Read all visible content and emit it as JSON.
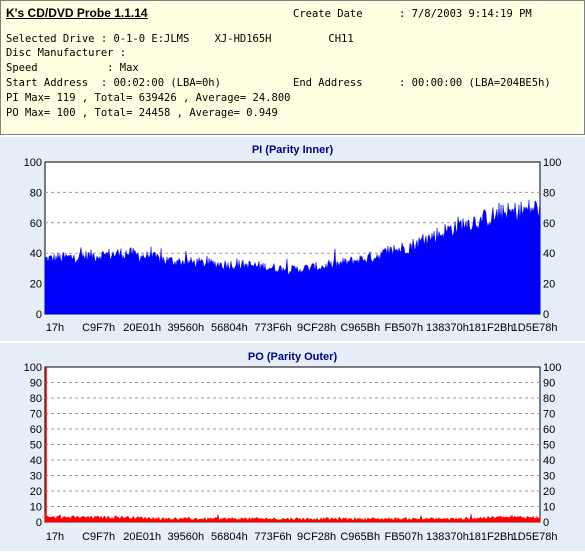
{
  "header": {
    "app_title": "K's CD/DVD Probe 1.1.14",
    "create_date_label": "Create Date",
    "create_date_value": ": 7/8/2003 9:14:19 PM",
    "line1": "Selected Drive : 0-1-0 E:JLMS    XJ-HD165H         CH11",
    "line2": "Disc Manufacturer :",
    "line3": "Speed           : Max",
    "start_address": "Start Address  : 00:02:00 (LBA=0h)",
    "end_address_label": "End Address",
    "end_address_value": ": 00:00:00 (LBA=204BE5h)",
    "pi_stats": "PI Max= 119 , Total= 639426 , Average= 24.800",
    "po_stats": "PO Max= 100 , Total= 24458 , Average= 0.949"
  },
  "x_tick_labels": [
    "17h",
    "C9F7h",
    "20E01h",
    "39560h",
    "56804h",
    "773F6h",
    "9CF28h",
    "C965Bh",
    "FB507h",
    "138370h",
    "181F2Bh",
    "1D5E78h"
  ],
  "chart_data": [
    {
      "type": "area",
      "title": "PI (Parity Inner)",
      "x": [
        "17h",
        "C9F7h",
        "20E01h",
        "39560h",
        "56804h",
        "773F6h",
        "9CF28h",
        "C965Bh",
        "FB507h",
        "138370h",
        "181F2Bh",
        "1D5E78h",
        "204BE5h"
      ],
      "values": [
        36,
        38,
        40,
        35,
        33,
        32,
        29,
        32,
        38,
        46,
        58,
        65,
        70
      ],
      "ylim": [
        0,
        100
      ],
      "yticks": [
        0,
        20,
        40,
        60,
        80,
        100
      ],
      "ytick_labels": [
        "0",
        "20",
        "40",
        "60",
        "80",
        "100"
      ],
      "grid": true,
      "color": "#0000ff"
    },
    {
      "type": "area",
      "title": "PO (Parity Outer)",
      "x": [
        "17h",
        "C9F7h",
        "20E01h",
        "39560h",
        "56804h",
        "773F6h",
        "9CF28h",
        "C965Bh",
        "FB507h",
        "138370h",
        "181F2Bh",
        "1D5E78h",
        "204BE5h"
      ],
      "values": [
        3,
        3,
        3,
        2,
        2,
        2,
        2,
        2,
        2,
        2,
        2,
        3,
        3
      ],
      "spike": {
        "x": "17h",
        "value": 100
      },
      "ylim": [
        0,
        100
      ],
      "yticks": [
        0,
        10,
        20,
        30,
        40,
        50,
        60,
        70,
        80,
        90,
        100
      ],
      "ytick_labels": [
        "0",
        "10",
        "20",
        "30",
        "40",
        "50",
        "60",
        "70",
        "80",
        "90",
        "100"
      ],
      "grid": true,
      "color": "#ff0000"
    }
  ],
  "colors": {
    "info_bg": "#ffffe1",
    "panel_bg": "#e6eef7",
    "title": "#00008b"
  }
}
